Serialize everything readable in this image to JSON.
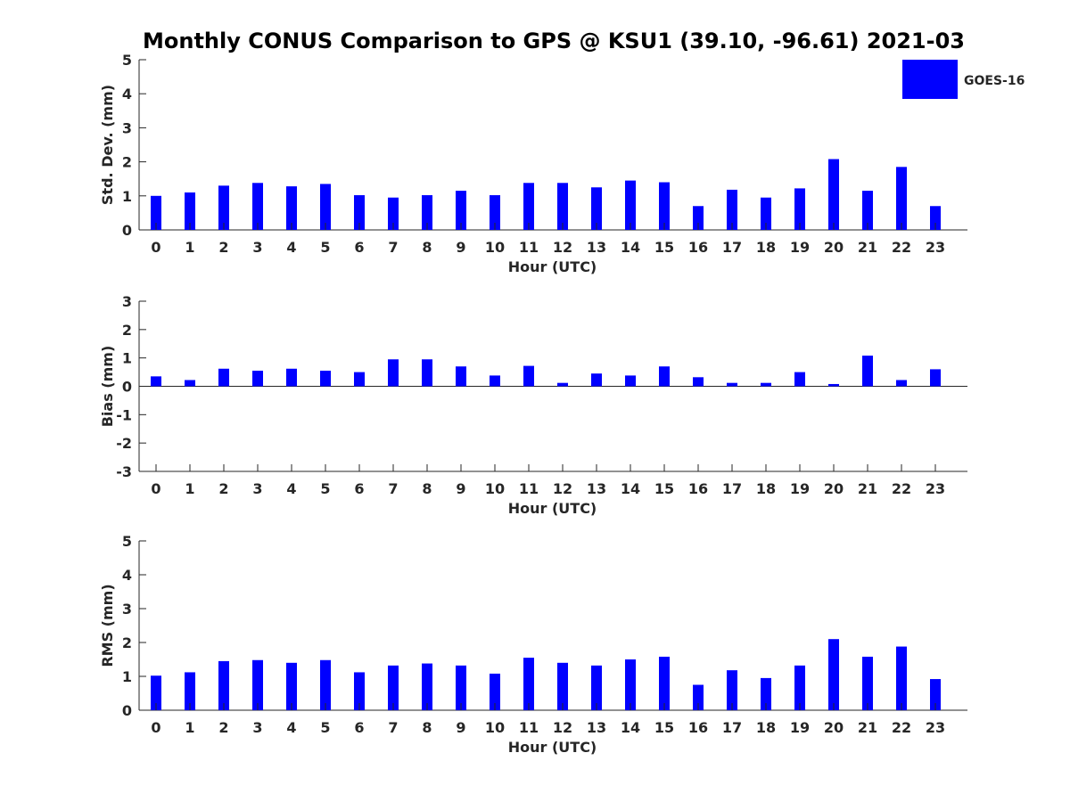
{
  "chart_data": [
    {
      "type": "bar",
      "title": "Monthly CONUS Comparison to GPS @ KSU1 (39.10, -96.61) 2021-03",
      "xlabel": "Hour (UTC)",
      "ylabel": "Std. Dev. (mm)",
      "ylim": [
        0,
        5
      ],
      "yticks": [
        0,
        1,
        2,
        3,
        4,
        5
      ],
      "categories": [
        "0",
        "1",
        "2",
        "3",
        "4",
        "5",
        "6",
        "7",
        "8",
        "9",
        "10",
        "11",
        "12",
        "13",
        "14",
        "15",
        "16",
        "17",
        "18",
        "19",
        "20",
        "21",
        "22",
        "23"
      ],
      "series": [
        {
          "name": "GOES-16",
          "values": [
            1.0,
            1.1,
            1.3,
            1.38,
            1.28,
            1.35,
            1.02,
            0.95,
            1.02,
            1.15,
            1.02,
            1.38,
            1.38,
            1.25,
            1.45,
            1.4,
            0.7,
            1.18,
            0.95,
            1.22,
            2.08,
            1.15,
            1.85,
            0.7
          ]
        }
      ],
      "legend": "top-right",
      "color": "#0000FF"
    },
    {
      "type": "bar",
      "xlabel": "Hour (UTC)",
      "ylabel": "Bias (mm)",
      "ylim": [
        -3,
        3
      ],
      "yticks": [
        -3,
        -2,
        -1,
        0,
        1,
        2,
        3
      ],
      "categories": [
        "0",
        "1",
        "2",
        "3",
        "4",
        "5",
        "6",
        "7",
        "8",
        "9",
        "10",
        "11",
        "12",
        "13",
        "14",
        "15",
        "16",
        "17",
        "18",
        "19",
        "20",
        "21",
        "22",
        "23"
      ],
      "series": [
        {
          "name": "GOES-16",
          "values": [
            0.35,
            0.22,
            0.62,
            0.55,
            0.62,
            0.55,
            0.5,
            0.95,
            0.95,
            0.7,
            0.38,
            0.72,
            0.12,
            0.45,
            0.38,
            0.7,
            0.32,
            0.12,
            0.12,
            0.5,
            0.08,
            1.08,
            0.22,
            0.6
          ]
        }
      ],
      "color": "#0000FF"
    },
    {
      "type": "bar",
      "xlabel": "Hour (UTC)",
      "ylabel": "RMS (mm)",
      "ylim": [
        0,
        5
      ],
      "yticks": [
        0,
        1,
        2,
        3,
        4,
        5
      ],
      "categories": [
        "0",
        "1",
        "2",
        "3",
        "4",
        "5",
        "6",
        "7",
        "8",
        "9",
        "10",
        "11",
        "12",
        "13",
        "14",
        "15",
        "16",
        "17",
        "18",
        "19",
        "20",
        "21",
        "22",
        "23"
      ],
      "series": [
        {
          "name": "GOES-16",
          "values": [
            1.02,
            1.12,
            1.45,
            1.48,
            1.4,
            1.48,
            1.12,
            1.32,
            1.38,
            1.32,
            1.08,
            1.55,
            1.4,
            1.32,
            1.5,
            1.58,
            0.75,
            1.18,
            0.95,
            1.32,
            2.1,
            1.58,
            1.88,
            0.92
          ]
        }
      ],
      "color": "#0000FF"
    }
  ]
}
